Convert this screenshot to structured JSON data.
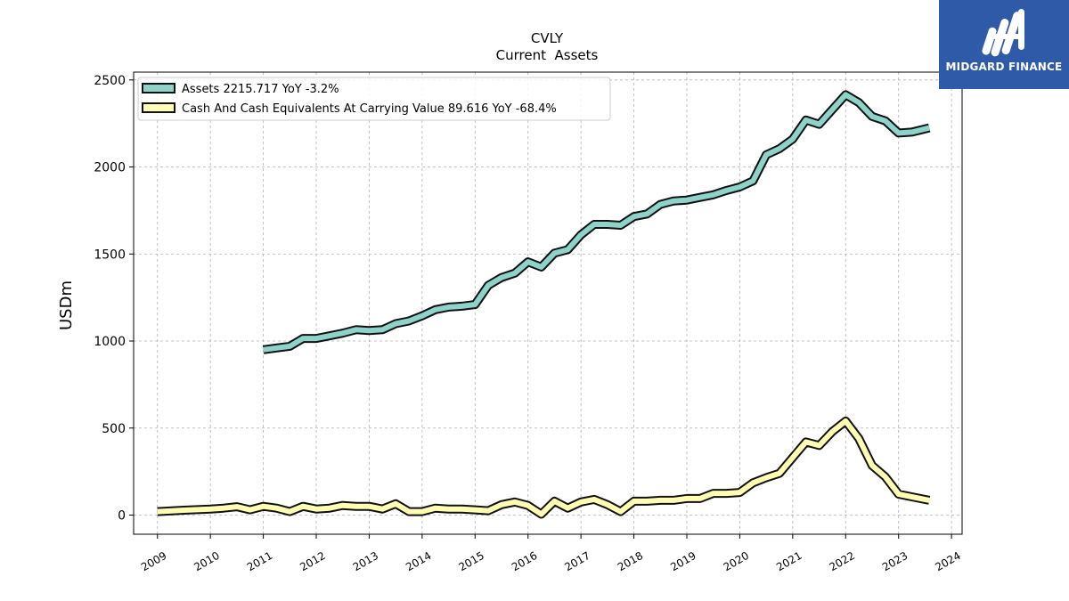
{
  "brand": {
    "name": "MIDGARD FINANCE",
    "bg_color": "#2f5aa8",
    "icon": "midgard-logo-icon"
  },
  "chart_data": {
    "type": "line",
    "title": "CVLY",
    "subtitle": "Current  Assets",
    "xlabel": "",
    "ylabel": "USDm",
    "xlim": [
      2008.55,
      2024.2
    ],
    "ylim": [
      -110,
      2545
    ],
    "x_ticks": [
      "2009",
      "2010",
      "2011",
      "2012",
      "2013",
      "2014",
      "2015",
      "2016",
      "2017",
      "2018",
      "2019",
      "2020",
      "2021",
      "2022",
      "2023",
      "2024"
    ],
    "y_ticks": [
      "0",
      "500",
      "1000",
      "1500",
      "2000",
      "2500"
    ],
    "grid": true,
    "legend_position": "top-left",
    "series": [
      {
        "name": "Assets  2215.717 YoY -3.2%",
        "color": "#8dd3c7",
        "points": [
          [
            2011.0,
            950
          ],
          [
            2011.25,
            960
          ],
          [
            2011.5,
            970
          ],
          [
            2011.75,
            1015
          ],
          [
            2012.0,
            1015
          ],
          [
            2012.25,
            1030
          ],
          [
            2012.5,
            1045
          ],
          [
            2012.75,
            1065
          ],
          [
            2013.0,
            1060
          ],
          [
            2013.25,
            1065
          ],
          [
            2013.5,
            1100
          ],
          [
            2013.75,
            1115
          ],
          [
            2014.0,
            1145
          ],
          [
            2014.25,
            1180
          ],
          [
            2014.5,
            1195
          ],
          [
            2014.75,
            1200
          ],
          [
            2015.0,
            1210
          ],
          [
            2015.25,
            1320
          ],
          [
            2015.5,
            1365
          ],
          [
            2015.75,
            1390
          ],
          [
            2016.0,
            1455
          ],
          [
            2016.25,
            1425
          ],
          [
            2016.5,
            1505
          ],
          [
            2016.75,
            1525
          ],
          [
            2017.0,
            1610
          ],
          [
            2017.25,
            1670
          ],
          [
            2017.5,
            1670
          ],
          [
            2017.75,
            1665
          ],
          [
            2018.0,
            1715
          ],
          [
            2018.25,
            1730
          ],
          [
            2018.5,
            1785
          ],
          [
            2018.75,
            1805
          ],
          [
            2019.0,
            1810
          ],
          [
            2019.25,
            1825
          ],
          [
            2019.5,
            1840
          ],
          [
            2019.75,
            1865
          ],
          [
            2020.0,
            1885
          ],
          [
            2020.25,
            1920
          ],
          [
            2020.5,
            2070
          ],
          [
            2020.75,
            2105
          ],
          [
            2021.0,
            2160
          ],
          [
            2021.25,
            2270
          ],
          [
            2021.5,
            2245
          ],
          [
            2021.75,
            2330
          ],
          [
            2022.0,
            2415
          ],
          [
            2022.25,
            2370
          ],
          [
            2022.5,
            2290
          ],
          [
            2022.75,
            2265
          ],
          [
            2023.0,
            2195
          ],
          [
            2023.25,
            2200
          ],
          [
            2023.58,
            2225
          ]
        ]
      },
      {
        "name": "Cash And Cash Equivalents At Carrying Value  89.616 YoY -68.4%",
        "color": "#ffffb3",
        "points": [
          [
            2009.0,
            20
          ],
          [
            2009.5,
            28
          ],
          [
            2010.0,
            35
          ],
          [
            2010.25,
            40
          ],
          [
            2010.5,
            48
          ],
          [
            2010.75,
            30
          ],
          [
            2011.0,
            50
          ],
          [
            2011.25,
            40
          ],
          [
            2011.5,
            20
          ],
          [
            2011.75,
            50
          ],
          [
            2012.0,
            35
          ],
          [
            2012.25,
            40
          ],
          [
            2012.5,
            55
          ],
          [
            2012.75,
            50
          ],
          [
            2013.0,
            50
          ],
          [
            2013.25,
            35
          ],
          [
            2013.5,
            65
          ],
          [
            2013.75,
            20
          ],
          [
            2014.0,
            20
          ],
          [
            2014.25,
            40
          ],
          [
            2014.5,
            35
          ],
          [
            2014.75,
            35
          ],
          [
            2015.0,
            30
          ],
          [
            2015.25,
            25
          ],
          [
            2015.5,
            60
          ],
          [
            2015.75,
            75
          ],
          [
            2016.0,
            55
          ],
          [
            2016.25,
            5
          ],
          [
            2016.5,
            80
          ],
          [
            2016.75,
            40
          ],
          [
            2017.0,
            75
          ],
          [
            2017.25,
            90
          ],
          [
            2017.5,
            60
          ],
          [
            2017.75,
            20
          ],
          [
            2018.0,
            80
          ],
          [
            2018.25,
            80
          ],
          [
            2018.5,
            85
          ],
          [
            2018.75,
            85
          ],
          [
            2019.0,
            95
          ],
          [
            2019.25,
            95
          ],
          [
            2019.5,
            125
          ],
          [
            2019.75,
            125
          ],
          [
            2020.0,
            130
          ],
          [
            2020.25,
            185
          ],
          [
            2020.5,
            215
          ],
          [
            2020.75,
            240
          ],
          [
            2021.0,
            330
          ],
          [
            2021.25,
            420
          ],
          [
            2021.5,
            400
          ],
          [
            2021.75,
            480
          ],
          [
            2022.0,
            540
          ],
          [
            2022.25,
            440
          ],
          [
            2022.5,
            285
          ],
          [
            2022.75,
            220
          ],
          [
            2023.0,
            120
          ],
          [
            2023.25,
            105
          ],
          [
            2023.58,
            85
          ]
        ]
      }
    ]
  }
}
